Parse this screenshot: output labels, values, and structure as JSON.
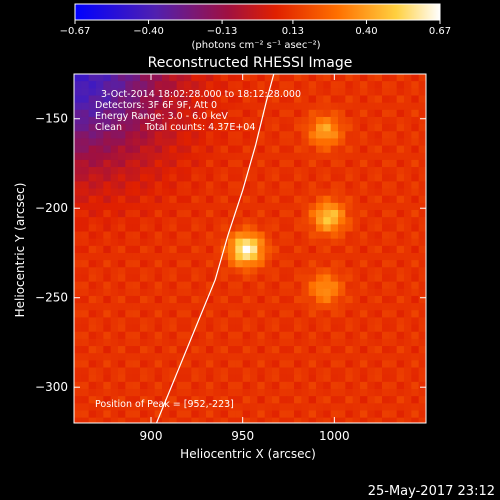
{
  "chart_data": {
    "type": "heatmap",
    "title": "Reconstructed RHESSI Image",
    "xlabel": "Heliocentric X (arcsec)",
    "ylabel": "Heliocentric Y (arcsec)",
    "xlim": [
      858,
      1050
    ],
    "ylim": [
      -320,
      -125
    ],
    "x_ticks": [
      900,
      950,
      1000
    ],
    "y_ticks": [
      -300,
      -250,
      -200,
      -150
    ],
    "colorbar": {
      "unit_label": "(photons cm⁻² s⁻¹ asec⁻²)",
      "tick_values": [
        -0.67,
        -0.4,
        -0.13,
        0.13,
        0.4,
        0.67
      ],
      "tick_labels": [
        "−0.67",
        "−0.40",
        "−0.13",
        "0.13",
        "0.40",
        "0.67"
      ],
      "range": [
        -0.67,
        0.67
      ]
    },
    "annotations": [
      "3-Oct-2014 18:02:28.000 to 18:12:28.000",
      "Detectors: 3F 6F 9F, Att 0",
      "Energy Range: 3.0 - 6.0 keV",
      "Clean",
      "Total counts: 4.37E+04"
    ],
    "peak_label": "Position of Peak = [952,-223]",
    "sources": [
      {
        "x": 952,
        "y": -223,
        "value": 0.67
      },
      {
        "x": 997,
        "y": -205,
        "value": 0.5
      },
      {
        "x": 995,
        "y": -157,
        "value": 0.42
      },
      {
        "x": 995,
        "y": -245,
        "value": 0.38
      }
    ],
    "limb_curve": [
      [
        903,
        -320
      ],
      [
        915,
        -290
      ],
      [
        925,
        -265
      ],
      [
        935,
        -240
      ],
      [
        942,
        -215
      ],
      [
        950,
        -190
      ],
      [
        957,
        -165
      ],
      [
        963,
        -140
      ],
      [
        967,
        -125
      ]
    ],
    "footer_date": "25-May-2017 23:12"
  }
}
